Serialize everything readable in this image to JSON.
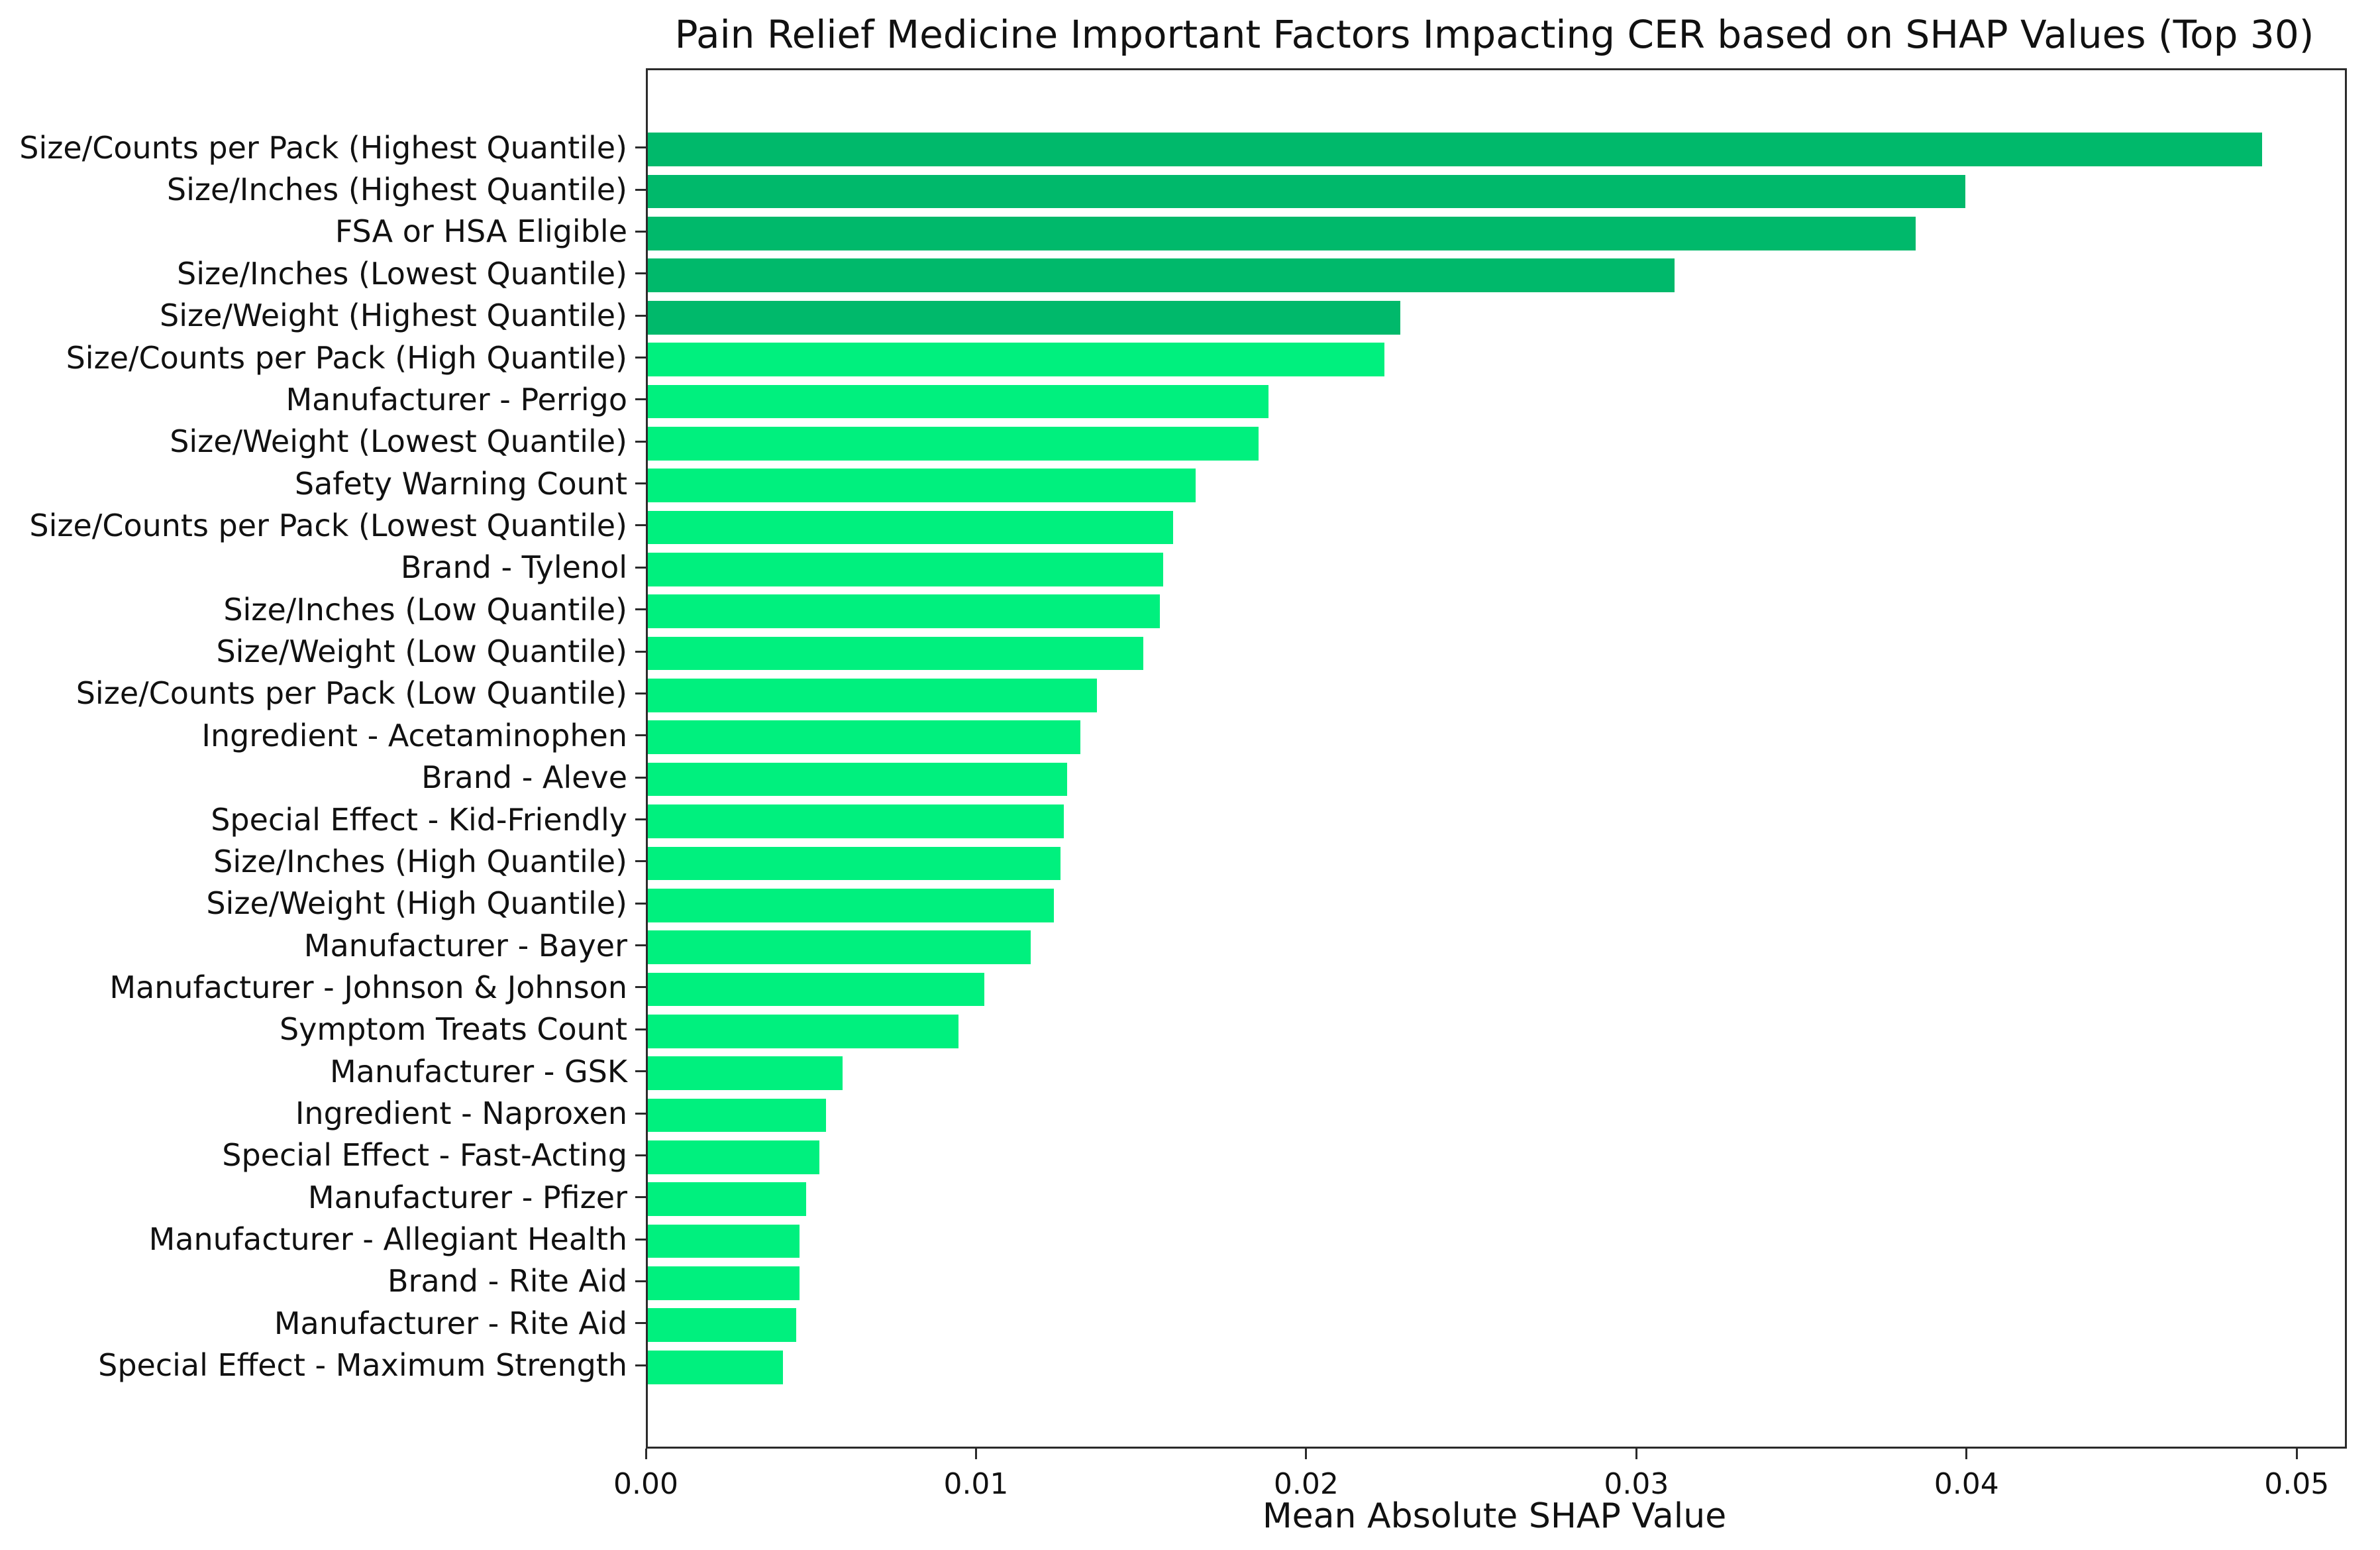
{
  "chart_data": {
    "type": "bar",
    "orientation": "horizontal",
    "title": "Pain Relief Medicine Important Factors Impacting CER based on SHAP Values (Top 30)",
    "xlabel": "Mean Absolute SHAP Value",
    "grid": false,
    "legend": "none",
    "xlim": [
      0,
      0.0514
    ],
    "x_ticks": [
      {
        "value": 0.0,
        "label": "0.00"
      },
      {
        "value": 0.01,
        "label": "0.01"
      },
      {
        "value": 0.02,
        "label": "0.02"
      },
      {
        "value": 0.03,
        "label": "0.03"
      },
      {
        "value": 0.04,
        "label": "0.04"
      },
      {
        "value": 0.05,
        "label": "0.05"
      }
    ],
    "colors": {
      "top_five_bars": "#00b96b",
      "other_bars": "#00f07e",
      "spine": "#2b2b2b",
      "text": "#111111"
    },
    "categories": [
      "Size/Counts per Pack (Highest Quantile)",
      "Size/Inches (Highest Quantile)",
      "FSA or HSA Eligible",
      "Size/Inches (Lowest Quantile)",
      "Size/Weight (Highest Quantile)",
      "Size/Counts per Pack (High Quantile)",
      "Manufacturer - Perrigo",
      "Size/Weight (Lowest Quantile)",
      "Safety Warning Count",
      "Size/Counts per Pack (Lowest Quantile)",
      "Brand - Tylenol",
      "Size/Inches (Low Quantile)",
      "Size/Weight (Low Quantile)",
      "Size/Counts per Pack (Low Quantile)",
      "Ingredient - Acetaminophen",
      "Brand - Aleve",
      "Special Effect - Kid-Friendly",
      "Size/Inches (High Quantile)",
      "Size/Weight (High Quantile)",
      "Manufacturer - Bayer",
      "Manufacturer - Johnson & Johnson",
      "Symptom Treats Count",
      "Manufacturer - GSK",
      "Ingredient - Naproxen",
      "Special Effect - Fast-Acting",
      "Manufacturer - Pfizer",
      "Manufacturer - Allegiant Health",
      "Brand - Rite Aid",
      "Manufacturer - Rite Aid",
      "Special Effect - Maximum Strength"
    ],
    "values": [
      0.0489,
      0.0399,
      0.0384,
      0.0311,
      0.0228,
      0.0223,
      0.0188,
      0.0185,
      0.0166,
      0.0159,
      0.0156,
      0.0155,
      0.015,
      0.0136,
      0.0131,
      0.0127,
      0.0126,
      0.0125,
      0.0123,
      0.0116,
      0.0102,
      0.0094,
      0.0059,
      0.0054,
      0.0052,
      0.0048,
      0.0046,
      0.0046,
      0.0045,
      0.0041
    ]
  }
}
